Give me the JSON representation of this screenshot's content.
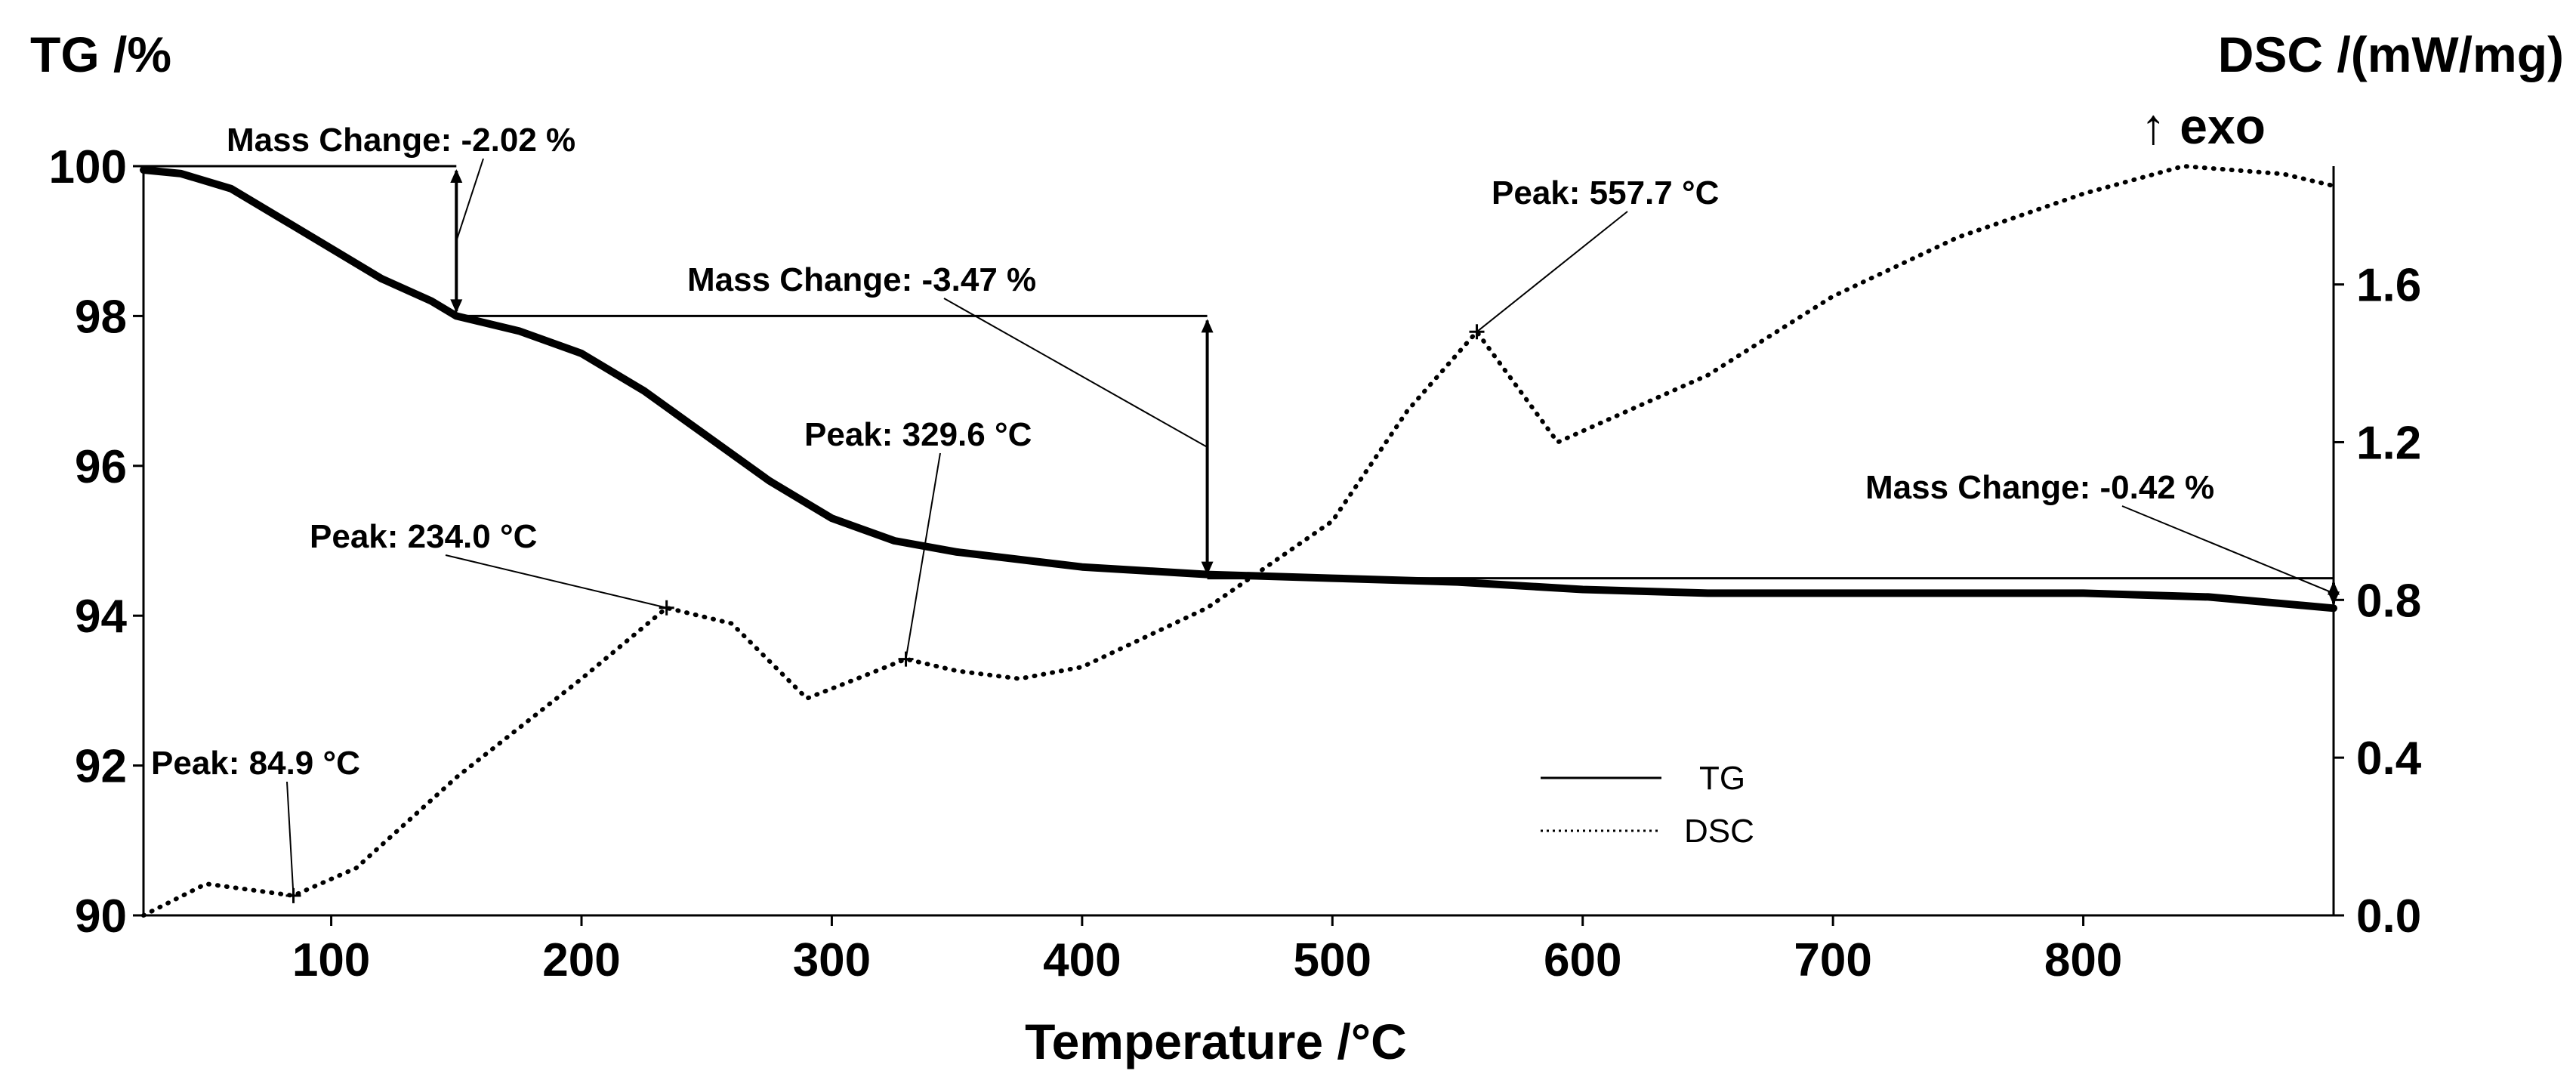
{
  "chart_data": {
    "type": "line",
    "xlabel": "Temperature /°C",
    "ylabel_left": "TG /%",
    "ylabel_right": "DSC /(mW/mg)",
    "right_sublabel": "↑ exo",
    "xlim": [
      25,
      900
    ],
    "ylim_left": [
      90,
      100
    ],
    "ylim_right": [
      0,
      1.9
    ],
    "x_ticks": [
      100,
      200,
      300,
      400,
      500,
      600,
      700,
      800
    ],
    "x_tick_labels": [
      "100",
      "200",
      "300",
      "400",
      "500",
      "600",
      "700",
      "800"
    ],
    "y_left_ticks": [
      90,
      92,
      94,
      96,
      98,
      100
    ],
    "y_left_tick_labels": [
      "90",
      "92",
      "94",
      "96",
      "98",
      "100"
    ],
    "y_right_ticks": [
      0.0,
      0.4,
      0.8,
      1.2,
      1.6
    ],
    "y_right_tick_labels": [
      "0.0",
      "0.4",
      "0.8",
      "1.2",
      "1.6"
    ],
    "legend": [
      "TG",
      "DSC"
    ],
    "series": [
      {
        "name": "TG",
        "axis": "left",
        "style": "solid",
        "x": [
          25,
          40,
          60,
          80,
          100,
          120,
          140,
          150,
          175,
          200,
          225,
          250,
          275,
          300,
          325,
          350,
          400,
          450,
          500,
          550,
          600,
          650,
          700,
          750,
          800,
          850,
          900
        ],
        "y": [
          99.95,
          99.9,
          99.7,
          99.3,
          98.9,
          98.5,
          98.2,
          98.0,
          97.8,
          97.5,
          97.0,
          96.4,
          95.8,
          95.3,
          95.0,
          94.85,
          94.65,
          94.55,
          94.5,
          94.45,
          94.35,
          94.3,
          94.3,
          94.3,
          94.3,
          94.25,
          94.1
        ]
      },
      {
        "name": "DSC",
        "axis": "right",
        "style": "dotted",
        "x": [
          25,
          50,
          84.9,
          110,
          150,
          200,
          234,
          260,
          290,
          310,
          329.6,
          350,
          375,
          400,
          450,
          500,
          530,
          557.7,
          590,
          650,
          700,
          750,
          800,
          840,
          880,
          900
        ],
        "y": [
          0.0,
          0.08,
          0.05,
          0.12,
          0.35,
          0.6,
          0.78,
          0.74,
          0.55,
          0.6,
          0.65,
          0.62,
          0.6,
          0.63,
          0.78,
          1.0,
          1.28,
          1.48,
          1.2,
          1.37,
          1.57,
          1.72,
          1.83,
          1.9,
          1.88,
          1.85
        ]
      }
    ],
    "annotations": [
      {
        "text": "Mass Change: -2.02 %",
        "from_x": 25,
        "x": 150,
        "y_top": 100.0,
        "y_bottom": 98.0
      },
      {
        "text": "Mass Change: -3.47 %",
        "from_x": 150,
        "x": 450,
        "y_top": 98.0,
        "y_bottom": 94.5
      },
      {
        "text": "Mass Change: -0.42 %",
        "from_x": 450,
        "x": 900,
        "y_top": 94.5,
        "y_bottom": 94.1
      },
      {
        "text": "Peak: 84.9 °C",
        "x": 84.9,
        "dsc": 0.05
      },
      {
        "text": "Peak: 234.0 °C",
        "x": 234.0,
        "dsc": 0.78
      },
      {
        "text": "Peak: 329.6 °C",
        "x": 329.6,
        "dsc": 0.65
      },
      {
        "text": "Peak: 557.7 °C",
        "x": 557.7,
        "dsc": 1.48
      }
    ]
  }
}
